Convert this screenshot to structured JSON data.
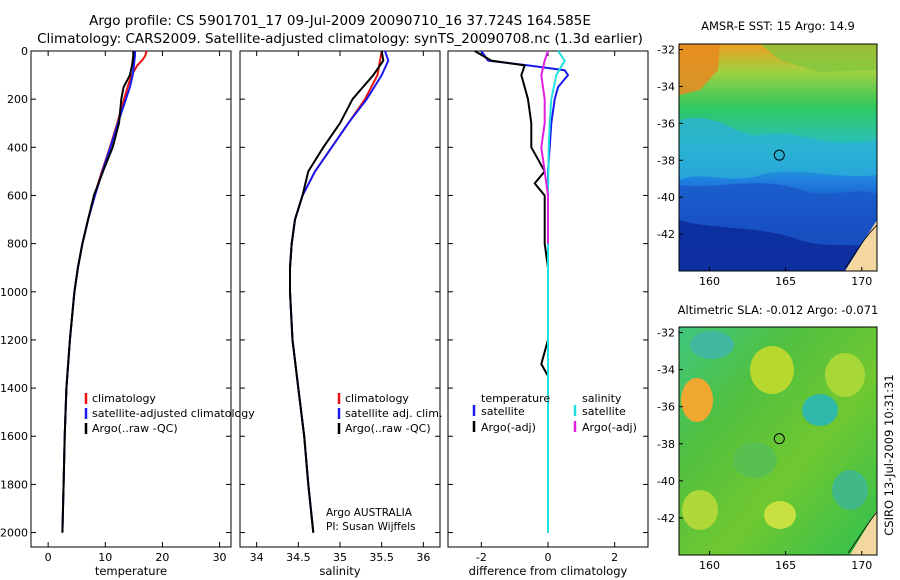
{
  "title": {
    "line1": "Argo profile: CS 5901701_17 09-Jul-2009 20090710_16 37.724S 164.585E",
    "line2": "Climatology: CARS2009. Satellite-adjusted climatology: synTS_20090708.nc (1.3d earlier)"
  },
  "side_caption": "CSIRO 13-Jul-2009 10:31:31",
  "colors": {
    "climatology": "#e8120c",
    "satellite": "#1a1aee",
    "argo": "#000000",
    "salinity_satellite": "#22e0e0",
    "salinity_argo": "#e020e0",
    "marker": "#000000"
  },
  "chart_data": [
    {
      "id": "temperature",
      "type": "line",
      "xlabel": "temperature",
      "xlim": [
        -3,
        32
      ],
      "xticks": [
        0,
        10,
        20,
        30
      ],
      "ylim": [
        2060,
        0
      ],
      "yticks": [
        0,
        200,
        400,
        600,
        800,
        1000,
        1200,
        1400,
        1600,
        1800,
        2000
      ],
      "depth": [
        0,
        20,
        40,
        60,
        100,
        150,
        200,
        300,
        400,
        500,
        600,
        700,
        800,
        900,
        1000,
        1200,
        1400,
        1600,
        1800,
        2000
      ],
      "series": [
        {
          "name": "climatology",
          "color_key": "climatology",
          "values": [
            17.2,
            17.0,
            16.4,
            15.6,
            14.6,
            13.9,
            13.3,
            12.1,
            10.8,
            9.4,
            8.1,
            7.0,
            6.0,
            5.2,
            4.6,
            3.8,
            3.2,
            2.9,
            2.7,
            2.5
          ]
        },
        {
          "name": "satellite-adjusted climatology",
          "color_key": "satellite",
          "values": [
            15.2,
            15.2,
            15.1,
            15.0,
            14.8,
            14.3,
            13.6,
            12.2,
            10.9,
            9.5,
            8.2,
            7.0,
            6.0,
            5.2,
            4.6,
            3.8,
            3.2,
            2.9,
            2.7,
            2.5
          ]
        },
        {
          "name": "Argo(..raw -QC)",
          "color_key": "argo",
          "values": [
            14.9,
            14.9,
            14.8,
            14.7,
            14.3,
            13.2,
            12.8,
            12.4,
            11.3,
            9.6,
            8.0,
            7.0,
            6.0,
            5.2,
            4.6,
            3.8,
            3.2,
            2.9,
            2.7,
            2.5
          ]
        }
      ],
      "legend": [
        "climatology",
        "satellite-adjusted climatology",
        "Argo(..raw -QC)"
      ]
    },
    {
      "id": "salinity",
      "type": "line",
      "xlabel": "salinity",
      "xlim": [
        33.8,
        36.2
      ],
      "xticks": [
        34,
        34.5,
        35,
        35.5,
        36
      ],
      "ylim": [
        2060,
        0
      ],
      "depth": [
        0,
        40,
        100,
        200,
        300,
        400,
        500,
        600,
        700,
        800,
        900,
        1000,
        1200,
        1400,
        1600,
        1800,
        2000
      ],
      "series": [
        {
          "name": "climatology",
          "color_key": "climatology",
          "values": [
            35.5,
            35.48,
            35.45,
            35.3,
            35.1,
            34.9,
            34.7,
            34.55,
            34.46,
            34.42,
            34.4,
            34.4,
            34.43,
            34.5,
            34.57,
            34.62,
            34.68
          ]
        },
        {
          "name": "satellite adj. clim.",
          "color_key": "satellite",
          "values": [
            35.54,
            35.58,
            35.5,
            35.32,
            35.1,
            34.9,
            34.7,
            34.55,
            34.46,
            34.42,
            34.4,
            34.4,
            34.43,
            34.5,
            34.57,
            34.62,
            34.68
          ]
        },
        {
          "name": "Argo(..raw -QC)",
          "color_key": "argo",
          "values": [
            35.5,
            35.52,
            35.4,
            35.15,
            35.0,
            34.8,
            34.62,
            34.55,
            34.46,
            34.42,
            34.4,
            34.4,
            34.43,
            34.5,
            34.57,
            34.62,
            34.68
          ]
        }
      ],
      "legend": [
        "climatology",
        "satellite adj. clim.",
        "Argo(..raw -QC)"
      ],
      "annotation": [
        "Argo AUSTRALIA",
        "PI: Susan Wijffels"
      ]
    },
    {
      "id": "difference",
      "type": "line",
      "xlabel": "difference from climatology",
      "xlim": [
        -3,
        3
      ],
      "xticks": [
        -2,
        0,
        2
      ],
      "ylim": [
        2060,
        0
      ],
      "legend_headers": [
        "temperature",
        "salinity"
      ],
      "legend": [
        "satellite",
        "Argo(-adj)",
        "satellite",
        "Argo(-adj)"
      ],
      "series": [
        {
          "name": "temperature satellite",
          "color_key": "satellite",
          "depth": [
            0,
            40,
            60,
            80,
            100,
            150,
            200,
            300,
            400,
            500,
            600,
            800,
            1000,
            1400,
            2000
          ],
          "values": [
            -2.0,
            -1.8,
            -0.6,
            0.5,
            0.6,
            0.3,
            0.2,
            0.1,
            0.05,
            0.0,
            0.0,
            0.0,
            0.0,
            0.0,
            0.0
          ]
        },
        {
          "name": "temperature Argo(-adj)",
          "color_key": "argo",
          "depth": [
            0,
            40,
            60,
            100,
            150,
            200,
            300,
            400,
            450,
            500,
            550,
            600,
            700,
            800,
            900,
            1000,
            1200,
            1300,
            1350,
            1400,
            1600,
            2000
          ],
          "values": [
            -2.2,
            -1.7,
            -0.7,
            -0.8,
            -0.7,
            -0.6,
            -0.5,
            -0.5,
            -0.3,
            -0.1,
            -0.4,
            -0.1,
            -0.1,
            -0.1,
            0.0,
            0.0,
            0.0,
            -0.2,
            0.0,
            0.0,
            0.0,
            0.0
          ]
        },
        {
          "name": "salinity satellite",
          "color_key": "salinity_satellite",
          "depth": [
            0,
            40,
            100,
            200,
            300,
            400,
            600,
            800,
            1000,
            1400,
            2000
          ],
          "values": [
            0.3,
            0.5,
            0.25,
            0.1,
            0.05,
            0.02,
            0.0,
            0.0,
            0.0,
            0.0,
            0.0
          ]
        },
        {
          "name": "salinity Argo(-adj)",
          "color_key": "salinity_argo",
          "depth": [
            0,
            40,
            100,
            150,
            200,
            300,
            400,
            500,
            600,
            700,
            800
          ],
          "values": [
            0.0,
            -0.1,
            -0.2,
            -0.15,
            -0.1,
            -0.1,
            -0.2,
            -0.1,
            0.0,
            0.0,
            0.0
          ]
        }
      ]
    },
    {
      "id": "sst-map",
      "type": "heatmap",
      "title": "AMSR-E SST: 15 Argo: 14.9",
      "xlim": [
        158,
        171
      ],
      "ylim": [
        -44,
        -31.7
      ],
      "xticks": [
        160,
        165,
        170
      ],
      "yticks": [
        -32,
        -34,
        -36,
        -38,
        -40,
        -42
      ],
      "marker": {
        "lon": 164.585,
        "lat": -37.724
      }
    },
    {
      "id": "sla-map",
      "type": "heatmap",
      "title": "Altimetric SLA: -0.012 Argo: -0.071",
      "xlim": [
        158,
        171
      ],
      "ylim": [
        -44,
        -31.7
      ],
      "xticks": [
        160,
        165,
        170
      ],
      "yticks": [
        -32,
        -34,
        -36,
        -38,
        -40,
        -42
      ],
      "marker": {
        "lon": 164.585,
        "lat": -37.724
      }
    }
  ]
}
